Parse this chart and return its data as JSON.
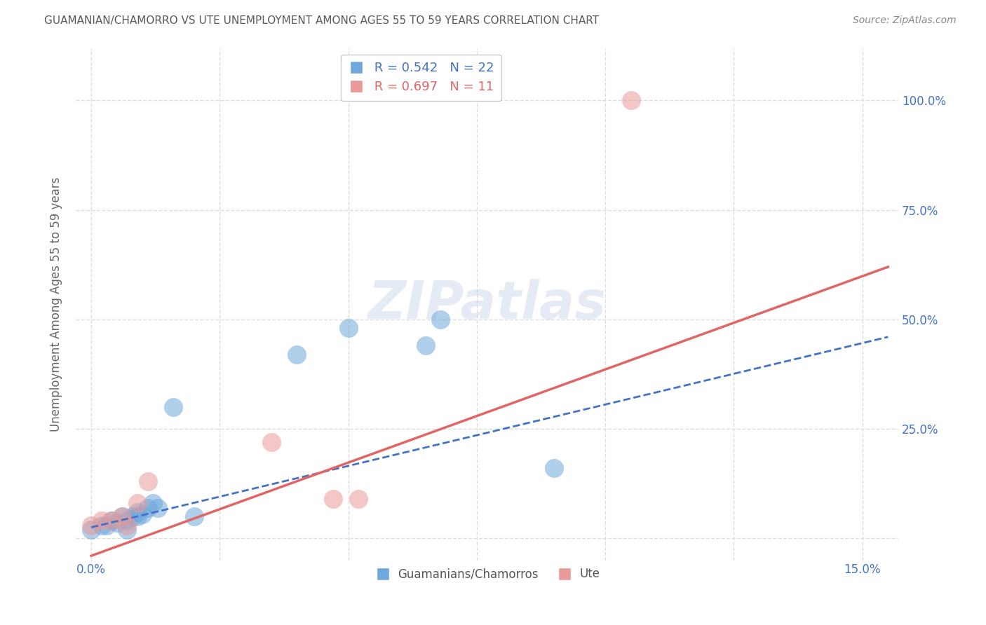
{
  "title": "GUAMANIAN/CHAMORRO VS UTE UNEMPLOYMENT AMONG AGES 55 TO 59 YEARS CORRELATION CHART",
  "source": "Source: ZipAtlas.com",
  "xlabel_ticks": [
    0.0,
    0.025,
    0.05,
    0.075,
    0.1,
    0.125,
    0.15
  ],
  "ylabel_ticks": [
    0.0,
    0.25,
    0.5,
    0.75,
    1.0
  ],
  "ylabel_labels": [
    "",
    "25.0%",
    "50.0%",
    "75.0%",
    "100.0%"
  ],
  "ylabel_label": "Unemployment Among Ages 55 to 59 years",
  "xlim": [
    -0.003,
    0.157
  ],
  "ylim": [
    -0.05,
    1.12
  ],
  "background_color": "#ffffff",
  "grid_color": "#dddddd",
  "watermark": "ZIPatlas",
  "blue_scatter_x": [
    0.0,
    0.002,
    0.003,
    0.004,
    0.005,
    0.006,
    0.007,
    0.007,
    0.008,
    0.009,
    0.009,
    0.01,
    0.011,
    0.012,
    0.013,
    0.016,
    0.02,
    0.04,
    0.05,
    0.065,
    0.068,
    0.09
  ],
  "blue_scatter_y": [
    0.02,
    0.03,
    0.03,
    0.04,
    0.035,
    0.05,
    0.04,
    0.02,
    0.05,
    0.05,
    0.06,
    0.055,
    0.07,
    0.08,
    0.07,
    0.3,
    0.05,
    0.42,
    0.48,
    0.44,
    0.5,
    0.16
  ],
  "pink_scatter_x": [
    0.0,
    0.002,
    0.004,
    0.006,
    0.007,
    0.009,
    0.011,
    0.035,
    0.047,
    0.052,
    0.105
  ],
  "pink_scatter_y": [
    0.03,
    0.04,
    0.04,
    0.05,
    0.03,
    0.08,
    0.13,
    0.22,
    0.09,
    0.09,
    1.0
  ],
  "blue_line_x": [
    0.0,
    0.155
  ],
  "blue_line_y": [
    0.025,
    0.46
  ],
  "pink_line_x": [
    0.0,
    0.155
  ],
  "pink_line_y": [
    -0.04,
    0.62
  ],
  "blue_color": "#6fa8dc",
  "pink_color": "#ea9999",
  "blue_line_color": "#4472c4",
  "pink_line_color": "#e06666",
  "legend_R_blue": "0.542",
  "legend_N_blue": "22",
  "legend_R_pink": "0.697",
  "legend_N_pink": "11",
  "title_color": "#595959",
  "axis_label_color": "#666666",
  "tick_label_color": "#4472c4",
  "source_color": "#888888"
}
